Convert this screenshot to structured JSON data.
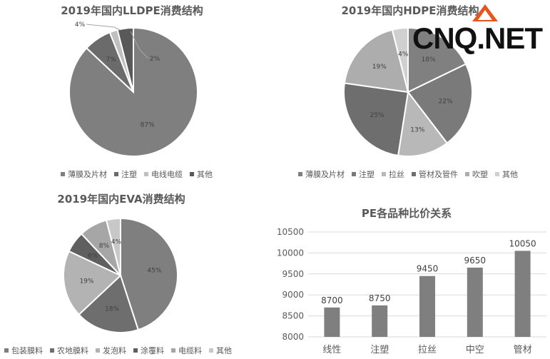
{
  "logo": {
    "text": "CNQ.NET"
  },
  "chart_data": [
    {
      "type": "pie",
      "title": "2019年国内LLDPE消费结构",
      "categories": [
        "薄膜及片材",
        "注塑",
        "电线电缆",
        "其他"
      ],
      "values": [
        87,
        7,
        2,
        4
      ],
      "data_labels": [
        "87%",
        "7%",
        "2%",
        "4%"
      ],
      "colors": [
        "#7f7f7f",
        "#6b6b6b",
        "#bfbfbf",
        "#595959"
      ],
      "legend": "bottom"
    },
    {
      "type": "pie",
      "title": "2019年国内HDPE消费结构",
      "categories": [
        "薄膜及片材",
        "注塑",
        "拉丝",
        "管材及管件",
        "吹塑",
        "其他"
      ],
      "values": [
        18,
        22,
        13,
        25,
        19,
        4
      ],
      "data_labels": [
        "18%",
        "22%",
        "13%",
        "25%",
        "19%",
        "4%"
      ],
      "colors": [
        "#808080",
        "#7a7a7a",
        "#b8b8b8",
        "#6e6e6e",
        "#adadad",
        "#d0d0d0"
      ],
      "legend": "bottom"
    },
    {
      "type": "pie",
      "title": "2019年国内EVA消费结构",
      "categories": [
        "包装膜料",
        "农地膜料",
        "发泡料",
        "涂覆料",
        "电缆料",
        "其他"
      ],
      "values": [
        45,
        18,
        19,
        6,
        8,
        4
      ],
      "data_labels": [
        "45%",
        "18%",
        "19%",
        "6%",
        "8%",
        "4%"
      ],
      "colors": [
        "#7f7f7f",
        "#6e6e6e",
        "#b3b3b3",
        "#5f5f5f",
        "#a6a6a6",
        "#c8c8c8"
      ],
      "legend": "bottom"
    },
    {
      "type": "bar",
      "title": "PE各品种比价关系",
      "categories": [
        "线性",
        "注塑",
        "拉丝",
        "中空",
        "管材"
      ],
      "values": [
        8700,
        8750,
        9450,
        9650,
        10050
      ],
      "data_labels": [
        "8700",
        "8750",
        "9450",
        "9650",
        "10050"
      ],
      "ylim": [
        8000,
        10500
      ],
      "yticks": [
        "8000",
        "8500",
        "9000",
        "9500",
        "10000",
        "10500"
      ],
      "color": "#7f7f7f",
      "grid": true
    }
  ]
}
